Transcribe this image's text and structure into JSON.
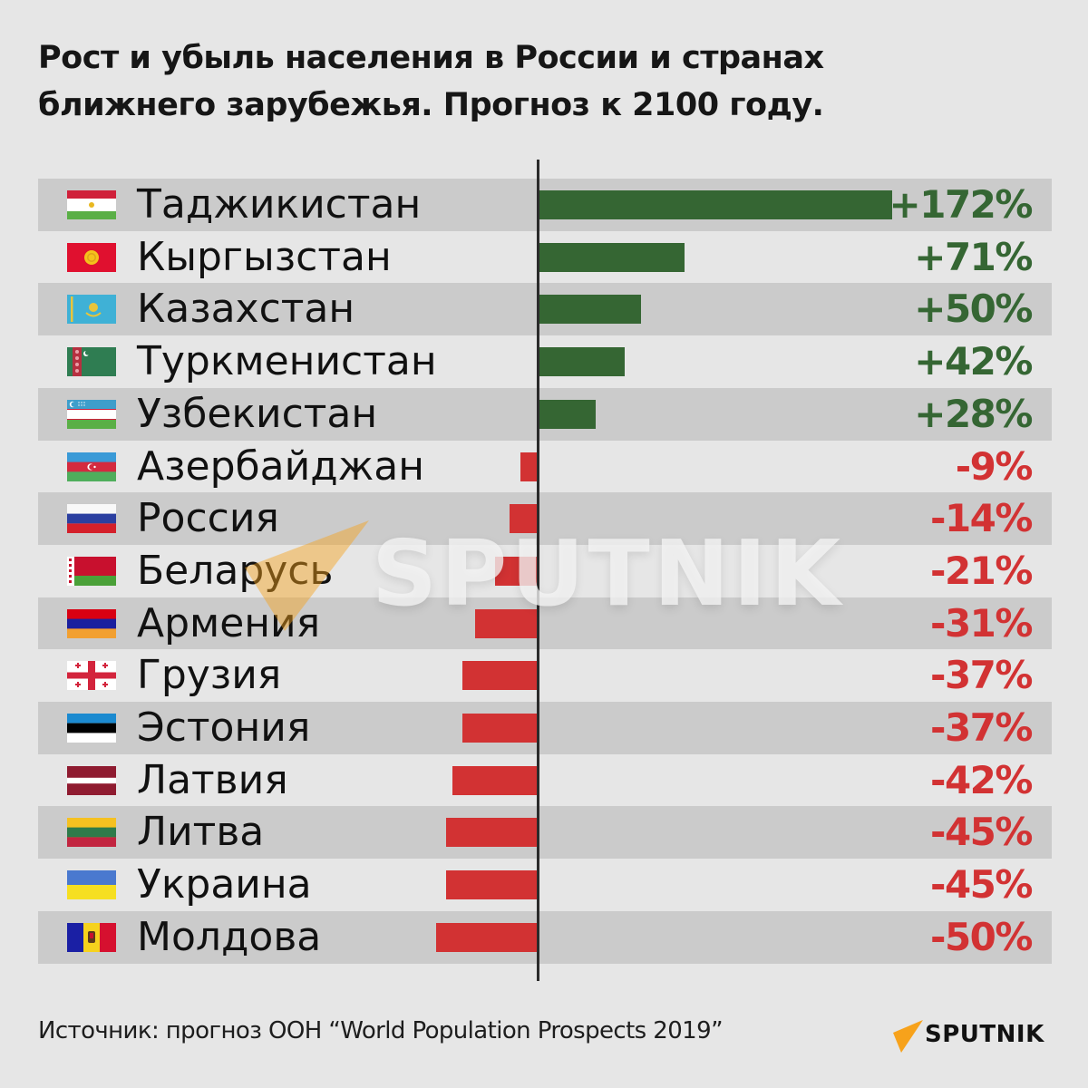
{
  "title": {
    "line1": "Рост и убыль населения в России и странах",
    "line2": "ближнего зарубежья. Прогноз к 2100 году."
  },
  "source": "Источник: прогноз ООН “World Population Prospects 2019”",
  "logo": {
    "text": "SPUTNIK",
    "accent_color": "#f7a21b"
  },
  "watermark": {
    "text": "SPUTNIK"
  },
  "colors": {
    "positive": "#356633",
    "negative": "#d23233",
    "row_dark": "#cbcbcb",
    "row_light": "#e6e6e6",
    "background": "#e6e6e6",
    "axis": "#2b2b2b"
  },
  "rows": [
    {
      "country": "Таджикистан",
      "flag": "flag-tajikistan",
      "value": 172,
      "label": "+172%"
    },
    {
      "country": "Кыргызстан",
      "flag": "flag-kyrgyzstan",
      "value": 71,
      "label": "+71%"
    },
    {
      "country": "Казахстан",
      "flag": "flag-kazakhstan",
      "value": 50,
      "label": "+50%"
    },
    {
      "country": "Туркменистан",
      "flag": "flag-turkmenistan",
      "value": 42,
      "label": "+42%"
    },
    {
      "country": "Узбекистан",
      "flag": "flag-uzbekistan",
      "value": 28,
      "label": "+28%"
    },
    {
      "country": "Азербайджан",
      "flag": "flag-azerbaijan",
      "value": -9,
      "label": "-9%"
    },
    {
      "country": "Россия",
      "flag": "flag-russia",
      "value": -14,
      "label": "-14%"
    },
    {
      "country": "Беларусь",
      "flag": "flag-belarus",
      "value": -21,
      "label": "-21%"
    },
    {
      "country": "Армения",
      "flag": "flag-armenia",
      "value": -31,
      "label": "-31%"
    },
    {
      "country": "Грузия",
      "flag": "flag-georgia",
      "value": -37,
      "label": "-37%"
    },
    {
      "country": "Эстония",
      "flag": "flag-estonia",
      "value": -37,
      "label": "-37%"
    },
    {
      "country": "Латвия",
      "flag": "flag-latvia",
      "value": -42,
      "label": "-42%"
    },
    {
      "country": "Литва",
      "flag": "flag-lithuania",
      "value": -45,
      "label": "-45%"
    },
    {
      "country": "Украина",
      "flag": "flag-ukraine",
      "value": -45,
      "label": "-45%"
    },
    {
      "country": "Молдова",
      "flag": "flag-moldova",
      "value": -50,
      "label": "-50%"
    }
  ],
  "chart_data": {
    "type": "bar",
    "orientation": "horizontal",
    "title": "Рост и убыль населения в России и странах ближнего зарубежья. Прогноз к 2100 году.",
    "xlabel": "",
    "ylabel": "",
    "unit": "%",
    "categories": [
      "Таджикистан",
      "Кыргызстан",
      "Казахстан",
      "Туркменистан",
      "Узбекистан",
      "Азербайджан",
      "Россия",
      "Беларусь",
      "Армения",
      "Грузия",
      "Эстония",
      "Латвия",
      "Литва",
      "Украина",
      "Молдова"
    ],
    "values": [
      172,
      71,
      50,
      42,
      28,
      -9,
      -14,
      -21,
      -31,
      -37,
      -37,
      -42,
      -45,
      -45,
      -50
    ],
    "data_labels": [
      "+172%",
      "+71%",
      "+50%",
      "+42%",
      "+28%",
      "-9%",
      "-14%",
      "-21%",
      "-31%",
      "-37%",
      "-37%",
      "-42%",
      "-45%",
      "-45%",
      "-50%"
    ],
    "xlim": [
      -50,
      172
    ],
    "grid": false,
    "legend": null,
    "annotation": "Источник: прогноз ООН “World Population Prospects 2019”"
  }
}
